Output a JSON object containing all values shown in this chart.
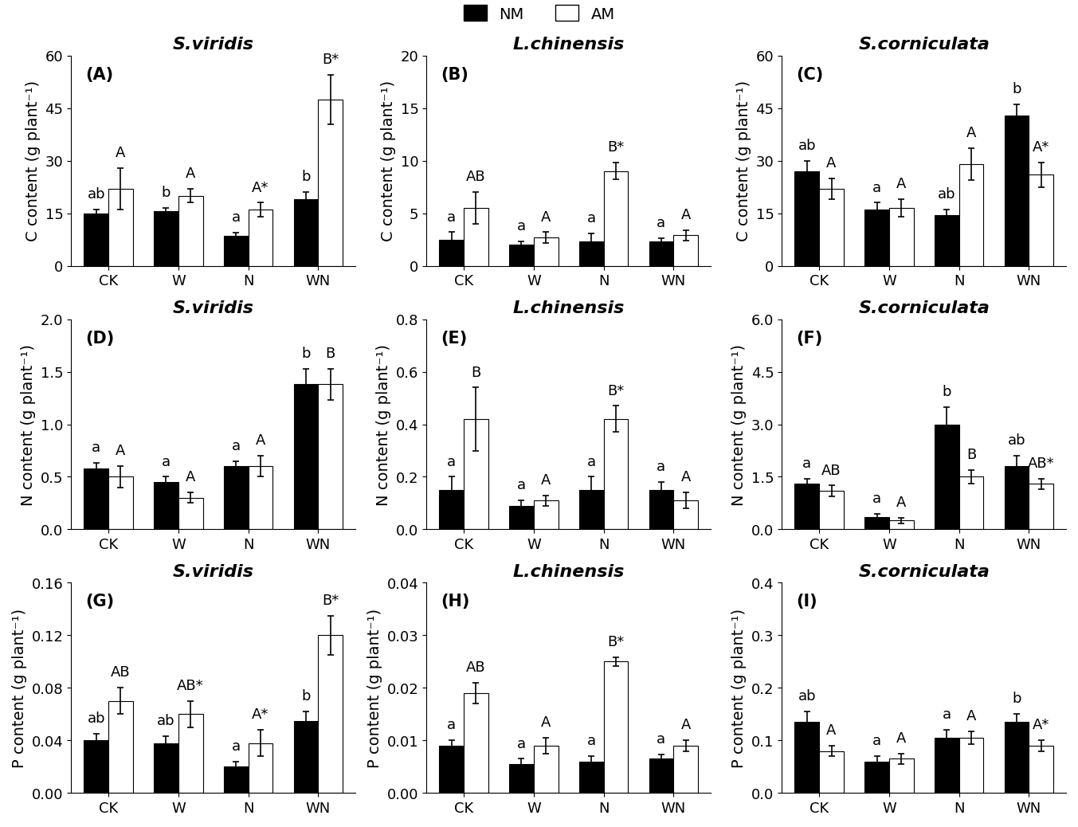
{
  "panels": {
    "A": {
      "title": "S.viridis",
      "label": "(A)",
      "ylabel": "C content (g plant⁻¹)",
      "ylim": [
        0,
        60
      ],
      "yticks": [
        0,
        15,
        30,
        45,
        60
      ],
      "NM": [
        15.0,
        15.5,
        8.5,
        19.0
      ],
      "AM": [
        22.0,
        20.0,
        16.0,
        47.5
      ],
      "NM_err": [
        1.0,
        1.0,
        1.0,
        2.0
      ],
      "AM_err": [
        6.0,
        2.0,
        2.0,
        7.0
      ],
      "NM_labels": [
        "ab",
        "b",
        "a",
        "b"
      ],
      "AM_labels": [
        "A",
        "A",
        "A*",
        "B*"
      ]
    },
    "B": {
      "title": "L.chinensis",
      "label": "(B)",
      "ylabel": "C content (g plant⁻¹)",
      "ylim": [
        0,
        20
      ],
      "yticks": [
        0,
        5,
        10,
        15,
        20
      ],
      "NM": [
        2.5,
        2.0,
        2.3,
        2.3
      ],
      "AM": [
        5.5,
        2.7,
        9.0,
        2.9
      ],
      "NM_err": [
        0.7,
        0.3,
        0.8,
        0.3
      ],
      "AM_err": [
        1.5,
        0.5,
        0.8,
        0.5
      ],
      "NM_labels": [
        "a",
        "a",
        "a",
        "a"
      ],
      "AM_labels": [
        "AB",
        "A",
        "B*",
        "A"
      ]
    },
    "C": {
      "title": "S.corniculata",
      "label": "(C)",
      "ylabel": "C content (g plant⁻¹)",
      "ylim": [
        0,
        60
      ],
      "yticks": [
        0,
        15,
        30,
        45,
        60
      ],
      "NM": [
        27.0,
        16.0,
        14.5,
        43.0
      ],
      "AM": [
        22.0,
        16.5,
        29.0,
        26.0
      ],
      "NM_err": [
        3.0,
        2.0,
        1.5,
        3.0
      ],
      "AM_err": [
        3.0,
        2.5,
        4.5,
        3.5
      ],
      "NM_labels": [
        "ab",
        "a",
        "ab",
        "b"
      ],
      "AM_labels": [
        "A",
        "A",
        "A",
        "A*"
      ]
    },
    "D": {
      "title": "S.viridis",
      "label": "(D)",
      "ylabel": "N content (g plant⁻¹)",
      "ylim": [
        0,
        2.0
      ],
      "yticks": [
        0,
        0.5,
        1.0,
        1.5,
        2.0
      ],
      "NM": [
        0.58,
        0.45,
        0.6,
        1.38
      ],
      "AM": [
        0.5,
        0.3,
        0.6,
        1.38
      ],
      "NM_err": [
        0.05,
        0.05,
        0.05,
        0.15
      ],
      "AM_err": [
        0.1,
        0.05,
        0.1,
        0.15
      ],
      "NM_labels": [
        "a",
        "a",
        "a",
        "b"
      ],
      "AM_labels": [
        "A",
        "A",
        "A",
        "B"
      ]
    },
    "E": {
      "title": "L.chinensis",
      "label": "(E)",
      "ylabel": "N content (g plant⁻¹)",
      "ylim": [
        0,
        0.8
      ],
      "yticks": [
        0,
        0.2,
        0.4,
        0.6,
        0.8
      ],
      "NM": [
        0.15,
        0.09,
        0.15,
        0.15
      ],
      "AM": [
        0.42,
        0.11,
        0.42,
        0.11
      ],
      "NM_err": [
        0.05,
        0.02,
        0.05,
        0.03
      ],
      "AM_err": [
        0.12,
        0.02,
        0.05,
        0.03
      ],
      "NM_labels": [
        "a",
        "a",
        "a",
        "a"
      ],
      "AM_labels": [
        "B",
        "A",
        "B*",
        "A"
      ]
    },
    "F": {
      "title": "S.corniculata",
      "label": "(F)",
      "ylabel": "N content (g plant⁻¹)",
      "ylim": [
        0,
        6
      ],
      "yticks": [
        0,
        1.5,
        3.0,
        4.5,
        6.0
      ],
      "NM": [
        1.3,
        0.35,
        3.0,
        1.8
      ],
      "AM": [
        1.1,
        0.25,
        1.5,
        1.3
      ],
      "NM_err": [
        0.15,
        0.1,
        0.5,
        0.3
      ],
      "AM_err": [
        0.15,
        0.08,
        0.2,
        0.15
      ],
      "NM_labels": [
        "a",
        "a",
        "b",
        "ab"
      ],
      "AM_labels": [
        "AB",
        "A",
        "B",
        "AB*"
      ]
    },
    "G": {
      "title": "S.viridis",
      "label": "(G)",
      "ylabel": "P content (g plant⁻¹)",
      "ylim": [
        0,
        0.16
      ],
      "yticks": [
        0,
        0.04,
        0.08,
        0.12,
        0.16
      ],
      "NM": [
        0.04,
        0.038,
        0.02,
        0.055
      ],
      "AM": [
        0.07,
        0.06,
        0.038,
        0.12
      ],
      "NM_err": [
        0.005,
        0.005,
        0.004,
        0.007
      ],
      "AM_err": [
        0.01,
        0.01,
        0.01,
        0.015
      ],
      "NM_labels": [
        "ab",
        "ab",
        "a",
        "b"
      ],
      "AM_labels": [
        "AB",
        "AB*",
        "A*",
        "B*"
      ]
    },
    "H": {
      "title": "L.chinensis",
      "label": "(H)",
      "ylabel": "P content (g plant⁻¹)",
      "ylim": [
        0,
        0.04
      ],
      "yticks": [
        0,
        0.01,
        0.02,
        0.03,
        0.04
      ],
      "NM": [
        0.009,
        0.0055,
        0.006,
        0.0065
      ],
      "AM": [
        0.019,
        0.009,
        0.025,
        0.009
      ],
      "NM_err": [
        0.001,
        0.001,
        0.001,
        0.0008
      ],
      "AM_err": [
        0.002,
        0.0015,
        0.0008,
        0.001
      ],
      "NM_labels": [
        "a",
        "a",
        "a",
        "a"
      ],
      "AM_labels": [
        "AB",
        "A",
        "B*",
        "A"
      ]
    },
    "I": {
      "title": "S.corniculata",
      "label": "(I)",
      "ylabel": "P content (g plant⁻¹)",
      "ylim": [
        0,
        0.4
      ],
      "yticks": [
        0,
        0.1,
        0.2,
        0.3,
        0.4
      ],
      "NM": [
        0.135,
        0.06,
        0.105,
        0.135
      ],
      "AM": [
        0.08,
        0.065,
        0.105,
        0.09
      ],
      "NM_err": [
        0.02,
        0.01,
        0.015,
        0.015
      ],
      "AM_err": [
        0.01,
        0.01,
        0.012,
        0.01
      ],
      "NM_labels": [
        "ab",
        "a",
        "a",
        "b"
      ],
      "AM_labels": [
        "A",
        "A",
        "A",
        "A*"
      ]
    }
  },
  "xticklabels": [
    "CK",
    "W",
    "N",
    "WN"
  ],
  "bar_width": 0.35,
  "NM_color": "#000000",
  "AM_color": "#ffffff",
  "AM_edgecolor": "#000000",
  "legend_labels": [
    "NM",
    "AM"
  ],
  "title_fontsize": 16,
  "label_fontsize": 14,
  "tick_fontsize": 13,
  "annot_fontsize": 13
}
